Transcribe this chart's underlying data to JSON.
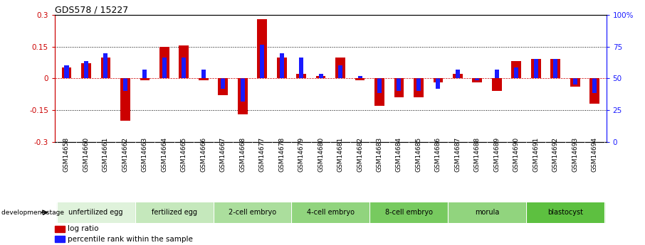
{
  "title": "GDS578 / 15227",
  "samples": [
    "GSM14658",
    "GSM14660",
    "GSM14661",
    "GSM14662",
    "GSM14663",
    "GSM14664",
    "GSM14665",
    "GSM14666",
    "GSM14667",
    "GSM14668",
    "GSM14677",
    "GSM14678",
    "GSM14679",
    "GSM14680",
    "GSM14681",
    "GSM14682",
    "GSM14683",
    "GSM14684",
    "GSM14685",
    "GSM14686",
    "GSM14687",
    "GSM14688",
    "GSM14689",
    "GSM14690",
    "GSM14691",
    "GSM14692",
    "GSM14693",
    "GSM14694"
  ],
  "log_ratio": [
    0.05,
    0.07,
    0.1,
    -0.2,
    -0.01,
    0.15,
    0.155,
    -0.01,
    -0.08,
    -0.17,
    0.28,
    0.1,
    0.02,
    0.01,
    0.1,
    -0.01,
    -0.13,
    -0.09,
    -0.09,
    -0.02,
    0.02,
    -0.02,
    -0.06,
    0.08,
    0.09,
    0.09,
    -0.04,
    -0.12
  ],
  "pct_rank_offset": [
    0.06,
    0.08,
    0.12,
    -0.06,
    0.04,
    0.1,
    0.1,
    0.04,
    -0.05,
    -0.11,
    0.16,
    0.12,
    0.1,
    0.02,
    0.06,
    0.01,
    -0.07,
    -0.06,
    -0.06,
    -0.05,
    0.04,
    -0.01,
    0.04,
    0.05,
    0.09,
    0.09,
    -0.03,
    -0.07
  ],
  "stages": [
    {
      "label": "unfertilized egg",
      "start": 0,
      "end": 4
    },
    {
      "label": "fertilized egg",
      "start": 4,
      "end": 8
    },
    {
      "label": "2-cell embryo",
      "start": 8,
      "end": 12
    },
    {
      "label": "4-cell embryo",
      "start": 12,
      "end": 16
    },
    {
      "label": "8-cell embryo",
      "start": 16,
      "end": 20
    },
    {
      "label": "morula",
      "start": 20,
      "end": 24
    },
    {
      "label": "blastocyst",
      "start": 24,
      "end": 28
    }
  ],
  "stage_colors": [
    "#d9ead3",
    "#b6d7a8",
    "#93c47d",
    "#6aa84f",
    "#38761d",
    "#93c47d",
    "#38761d"
  ],
  "stage_colors2": [
    "#e2f3e0",
    "#c6e8b8",
    "#aadd96",
    "#8ed274",
    "#72c752",
    "#aadd96",
    "#72c752"
  ],
  "ylim": [
    -0.3,
    0.3
  ],
  "y2lim": [
    0,
    100
  ],
  "yticks_left": [
    -0.3,
    -0.15,
    0.0,
    0.15,
    0.3
  ],
  "yticks_right": [
    0,
    25,
    50,
    75,
    100
  ],
  "hlines": [
    0.15,
    -0.15
  ],
  "bar_color_red": "#cc0000",
  "bar_color_blue": "#1a1aff",
  "bg_color": "#ffffff",
  "plot_bg": "#ffffff",
  "gray_label_bg": "#d9d9d9"
}
